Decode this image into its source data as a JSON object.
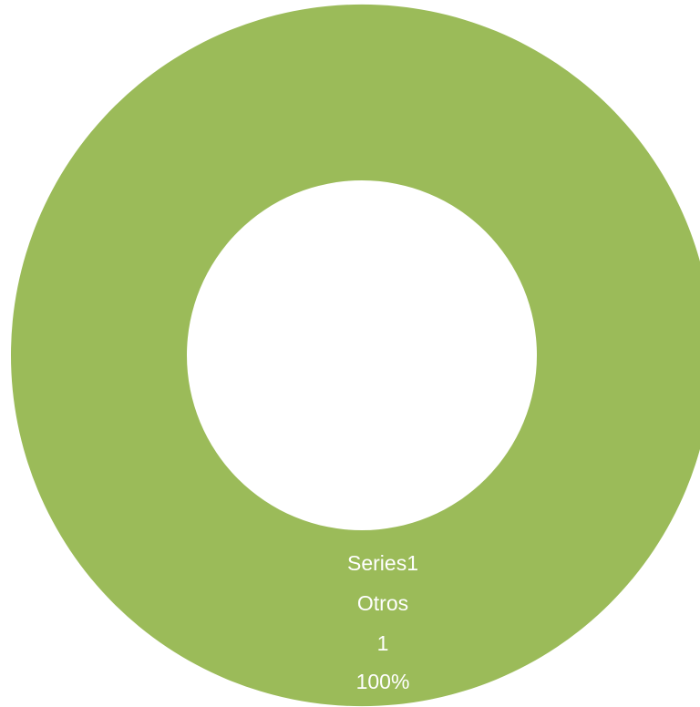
{
  "chart_data": {
    "type": "pie",
    "variant": "doughnut",
    "series": [
      {
        "name": "Series1",
        "categories": [
          "Otros"
        ],
        "values": [
          1
        ],
        "percentages": [
          "100%"
        ]
      }
    ],
    "data_labels": [
      {
        "series_name": "Series1",
        "category": "Otros",
        "value": "1",
        "percent": "100%"
      }
    ],
    "colors": {
      "Otros": "#9bbb59",
      "background": "#ffffff",
      "label_text": "#ffffff"
    },
    "legend": "none",
    "title": ""
  }
}
